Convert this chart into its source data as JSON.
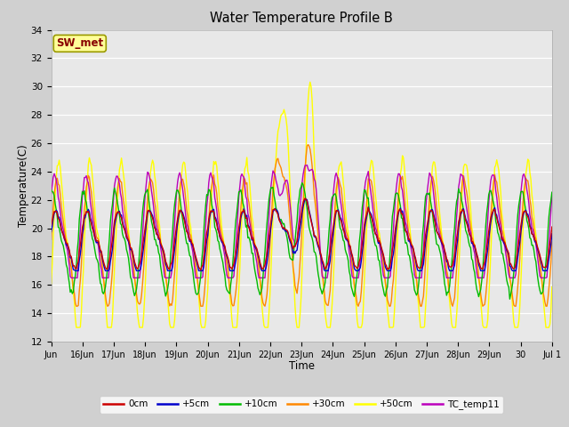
{
  "title": "Water Temperature Profile B",
  "xlabel": "Time",
  "ylabel": "Temperature(C)",
  "ylim": [
    12,
    34
  ],
  "yticks": [
    12,
    14,
    16,
    18,
    20,
    22,
    24,
    26,
    28,
    30,
    32,
    34
  ],
  "series_colors": {
    "0cm": "#cc0000",
    "+5cm": "#0000cc",
    "+10cm": "#00bb00",
    "+30cm": "#ff8800",
    "+50cm": "#ffff00",
    "TC_temp11": "#bb00bb"
  },
  "sw_met_box": {
    "text": "SW_met",
    "facecolor": "#ffff99",
    "edgecolor": "#999900",
    "textcolor": "#880000"
  },
  "num_points": 500,
  "line_width": 1.0,
  "x_tick_labels": [
    "Jun",
    "16Jun",
    "17Jun",
    "18Jun",
    "19Jun",
    "20Jun",
    "21Jun",
    "22Jun",
    "23Jun",
    "24Jun",
    "25Jun",
    "26Jun",
    "27Jun",
    "28Jun",
    "29Jun",
    "30",
    "Jul 1"
  ],
  "figure_bg": "#d0d0d0",
  "axes_bg": "#e8e8e8",
  "grid_color": "#ffffff"
}
